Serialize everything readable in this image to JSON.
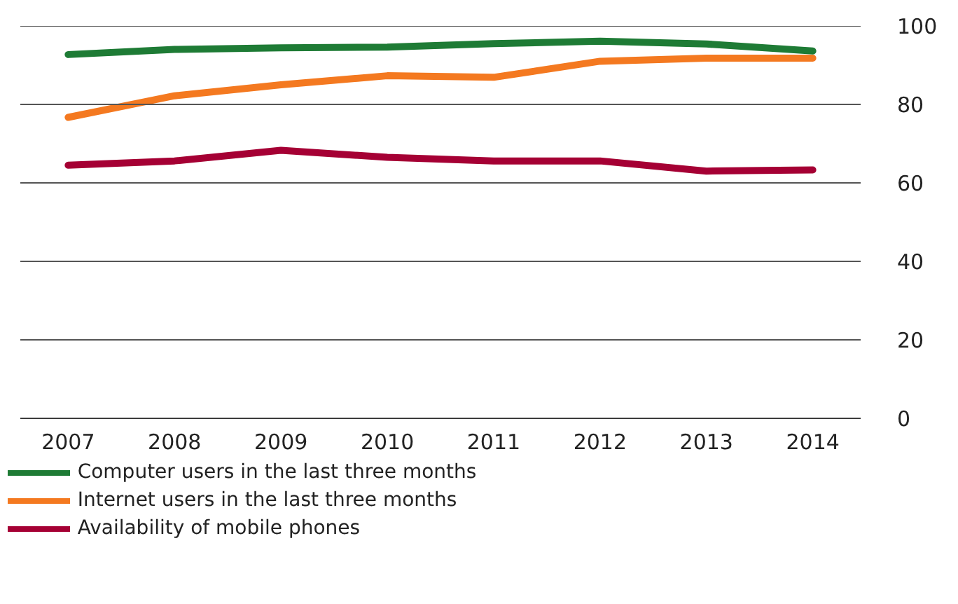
{
  "chart_data": {
    "type": "line",
    "categories": [
      "2007",
      "2008",
      "2009",
      "2010",
      "2011",
      "2012",
      "2013",
      "2014"
    ],
    "series": [
      {
        "name": "Computer users in the last three months",
        "color": "#1e7b35",
        "values": [
          92.7,
          94.0,
          94.4,
          94.6,
          95.5,
          96.1,
          95.4,
          93.6
        ]
      },
      {
        "name": "Internet users in the last three months",
        "color": "#f47920",
        "values": [
          76.7,
          82.2,
          85.0,
          87.3,
          86.9,
          91.0,
          91.8,
          91.8
        ]
      },
      {
        "name": "Availability of mobile phones",
        "color": "#a50034",
        "values": [
          64.5,
          65.6,
          68.3,
          66.5,
          65.6,
          65.6,
          63.0,
          63.3
        ]
      }
    ],
    "ylim": [
      0,
      100
    ],
    "yticks": [
      0,
      20,
      40,
      60,
      80,
      100
    ],
    "grid": "y",
    "legend": "bottom",
    "marker": "none",
    "line_style": "solid"
  }
}
